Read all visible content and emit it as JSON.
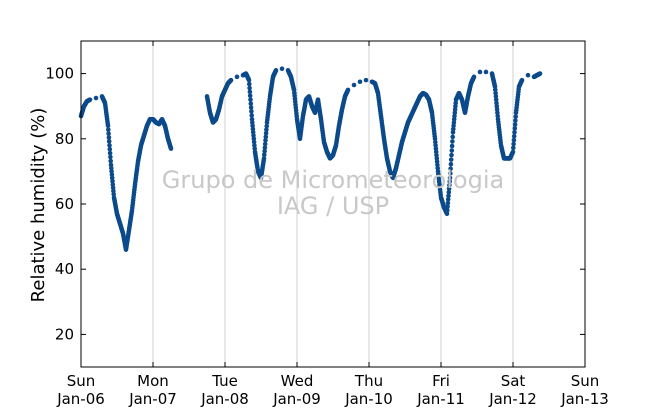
{
  "chart_data": {
    "type": "scatter",
    "title": "",
    "xlabel": "",
    "ylabel": "Relative humidity (%)",
    "watermark": [
      "Grupo de Micrometeorologia",
      "IAG / USP"
    ],
    "xlim": [
      "2013-01-06",
      "2013-01-13"
    ],
    "ylim": [
      10,
      110
    ],
    "yticks": [
      20,
      40,
      60,
      80,
      100
    ],
    "grid": "vertical",
    "marker_color": "#0b4a8b",
    "x_ticks": [
      {
        "day": "Sun",
        "date": "Jan-06"
      },
      {
        "day": "Mon",
        "date": "Jan-07"
      },
      {
        "day": "Tue",
        "date": "Jan-08"
      },
      {
        "day": "Wed",
        "date": "Jan-09"
      },
      {
        "day": "Thu",
        "date": "Jan-10"
      },
      {
        "day": "Fri",
        "date": "Jan-11"
      },
      {
        "day": "Sat",
        "date": "Jan-12"
      },
      {
        "day": "Sun",
        "date": "Jan-13"
      }
    ],
    "series": [
      {
        "points": [
          [
            "2013-01-06 00:00",
            87
          ],
          [
            "2013-01-06 01:00",
            90
          ],
          [
            "2013-01-06 02:00",
            91.5
          ],
          [
            "2013-01-06 03:00",
            92
          ],
          [
            "2013-01-06 05:00",
            92.5
          ],
          [
            "2013-01-06 07:00",
            93
          ],
          [
            "2013-01-06 08:00",
            91
          ],
          [
            "2013-01-06 09:00",
            84
          ],
          [
            "2013-01-06 10:00",
            72
          ],
          [
            "2013-01-06 11:00",
            62
          ],
          [
            "2013-01-06 12:00",
            57
          ],
          [
            "2013-01-06 13:00",
            54
          ],
          [
            "2013-01-06 14:00",
            51
          ],
          [
            "2013-01-06 15:00",
            46
          ],
          [
            "2013-01-06 16:00",
            52
          ],
          [
            "2013-01-06 17:00",
            58
          ],
          [
            "2013-01-06 18:00",
            66
          ],
          [
            "2013-01-06 19:00",
            73
          ],
          [
            "2013-01-06 20:00",
            78
          ],
          [
            "2013-01-06 21:00",
            81
          ],
          [
            "2013-01-06 22:00",
            84
          ],
          [
            "2013-01-06 23:00",
            86
          ],
          [
            "2013-01-07 00:00",
            86
          ],
          [
            "2013-01-07 01:00",
            85
          ],
          [
            "2013-01-07 02:00",
            84.5
          ],
          [
            "2013-01-07 03:00",
            86
          ],
          [
            "2013-01-07 04:00",
            84
          ],
          [
            "2013-01-07 05:00",
            80
          ],
          [
            "2013-01-07 06:00",
            77
          ],
          [
            "2013-01-07 18:00",
            93
          ],
          [
            "2013-01-07 19:00",
            88
          ],
          [
            "2013-01-07 20:00",
            85
          ],
          [
            "2013-01-07 21:00",
            86
          ],
          [
            "2013-01-07 22:00",
            89
          ],
          [
            "2013-01-07 23:00",
            93
          ],
          [
            "2013-01-08 00:00",
            95
          ],
          [
            "2013-01-08 01:00",
            97
          ],
          [
            "2013-01-08 02:00",
            98
          ],
          [
            "2013-01-08 04:00",
            99
          ],
          [
            "2013-01-08 06:00",
            99.5
          ],
          [
            "2013-01-08 07:00",
            100
          ],
          [
            "2013-01-08 08:00",
            98
          ],
          [
            "2013-01-08 09:00",
            86
          ],
          [
            "2013-01-08 10:00",
            76
          ],
          [
            "2013-01-08 11:00",
            70
          ],
          [
            "2013-01-08 12:00",
            68
          ],
          [
            "2013-01-08 13:00",
            74
          ],
          [
            "2013-01-08 14:00",
            85
          ],
          [
            "2013-01-08 15:00",
            93
          ],
          [
            "2013-01-08 16:00",
            99
          ],
          [
            "2013-01-08 17:00",
            101
          ],
          [
            "2013-01-08 19:00",
            101.5
          ],
          [
            "2013-01-08 21:00",
            101
          ],
          [
            "2013-01-08 22:00",
            99
          ],
          [
            "2013-01-08 23:00",
            95
          ],
          [
            "2013-01-09 00:00",
            86
          ],
          [
            "2013-01-09 01:00",
            80
          ],
          [
            "2013-01-09 02:00",
            87
          ],
          [
            "2013-01-09 03:00",
            92
          ],
          [
            "2013-01-09 04:00",
            93
          ],
          [
            "2013-01-09 05:00",
            90
          ],
          [
            "2013-01-09 06:00",
            88
          ],
          [
            "2013-01-09 07:00",
            92
          ],
          [
            "2013-01-09 08:00",
            86
          ],
          [
            "2013-01-09 09:00",
            79
          ],
          [
            "2013-01-09 10:00",
            76
          ],
          [
            "2013-01-09 11:00",
            74
          ],
          [
            "2013-01-09 12:00",
            75
          ],
          [
            "2013-01-09 13:00",
            78
          ],
          [
            "2013-01-09 14:00",
            84
          ],
          [
            "2013-01-09 15:00",
            89
          ],
          [
            "2013-01-09 16:00",
            93
          ],
          [
            "2013-01-09 17:00",
            95
          ],
          [
            "2013-01-09 19:00",
            96.5
          ],
          [
            "2013-01-09 21:00",
            97.5
          ],
          [
            "2013-01-09 23:00",
            98
          ],
          [
            "2013-01-10 01:00",
            97.5
          ],
          [
            "2013-01-10 02:00",
            97
          ],
          [
            "2013-01-10 03:00",
            94
          ],
          [
            "2013-01-10 04:00",
            87
          ],
          [
            "2013-01-10 05:00",
            80
          ],
          [
            "2013-01-10 06:00",
            74
          ],
          [
            "2013-01-10 07:00",
            70
          ],
          [
            "2013-01-10 08:00",
            68
          ],
          [
            "2013-01-10 09:00",
            71
          ],
          [
            "2013-01-10 10:00",
            75
          ],
          [
            "2013-01-10 11:00",
            79
          ],
          [
            "2013-01-10 12:00",
            82
          ],
          [
            "2013-01-10 13:00",
            85
          ],
          [
            "2013-01-10 14:00",
            87
          ],
          [
            "2013-01-10 15:00",
            89
          ],
          [
            "2013-01-10 16:00",
            91
          ],
          [
            "2013-01-10 17:00",
            93
          ],
          [
            "2013-01-10 18:00",
            94
          ],
          [
            "2013-01-10 19:00",
            93.5
          ],
          [
            "2013-01-10 20:00",
            92
          ],
          [
            "2013-01-10 21:00",
            88
          ],
          [
            "2013-01-10 22:00",
            80
          ],
          [
            "2013-01-10 23:00",
            70
          ],
          [
            "2013-01-11 00:00",
            62
          ],
          [
            "2013-01-11 01:00",
            59
          ],
          [
            "2013-01-11 02:00",
            57
          ],
          [
            "2013-01-11 03:00",
            68
          ],
          [
            "2013-01-11 04:00",
            82
          ],
          [
            "2013-01-11 05:00",
            92
          ],
          [
            "2013-01-11 06:00",
            94
          ],
          [
            "2013-01-11 07:00",
            92
          ],
          [
            "2013-01-11 08:00",
            88
          ],
          [
            "2013-01-11 09:00",
            93
          ],
          [
            "2013-01-11 10:00",
            97
          ],
          [
            "2013-01-11 11:00",
            99
          ],
          [
            "2013-01-11 13:00",
            100.5
          ],
          [
            "2013-01-11 15:00",
            100.5
          ],
          [
            "2013-01-11 17:00",
            100
          ],
          [
            "2013-01-11 18:00",
            96
          ],
          [
            "2013-01-11 19:00",
            86
          ],
          [
            "2013-01-11 20:00",
            78
          ],
          [
            "2013-01-11 21:00",
            74
          ],
          [
            "2013-01-11 22:00",
            74
          ],
          [
            "2013-01-11 23:00",
            74
          ],
          [
            "2013-01-12 00:00",
            76
          ],
          [
            "2013-01-12 01:00",
            88
          ],
          [
            "2013-01-12 02:00",
            96
          ],
          [
            "2013-01-12 03:00",
            98
          ],
          [
            "2013-01-12 05:00",
            99.5
          ],
          [
            "2013-01-12 07:00",
            99
          ],
          [
            "2013-01-12 08:00",
            99.5
          ],
          [
            "2013-01-12 09:00",
            100
          ]
        ]
      }
    ]
  }
}
